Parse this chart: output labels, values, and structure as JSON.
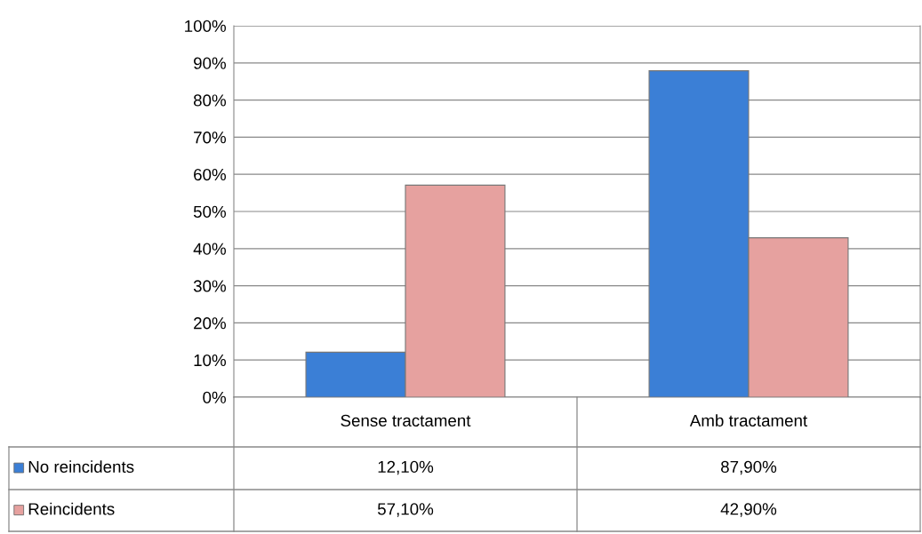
{
  "chart_data": {
    "type": "bar",
    "categories": [
      "Sense tractament",
      "Amb tractament"
    ],
    "series": [
      {
        "name": "No reincidents",
        "color": "#3b7fd6",
        "values": [
          12.1,
          87.9
        ],
        "value_labels": [
          "12,10%",
          "87,90%"
        ]
      },
      {
        "name": "Reincidents",
        "color": "#e6a19f",
        "values": [
          57.1,
          42.9
        ],
        "value_labels": [
          "57,10%",
          "42,90%"
        ]
      }
    ],
    "ylim": [
      0,
      100
    ],
    "yticks": [
      {
        "value": 0,
        "label": "0%"
      },
      {
        "value": 10,
        "label": "10%"
      },
      {
        "value": 20,
        "label": "20%"
      },
      {
        "value": 30,
        "label": "30%"
      },
      {
        "value": 40,
        "label": "40%"
      },
      {
        "value": 50,
        "label": "50%"
      },
      {
        "value": 60,
        "label": "60%"
      },
      {
        "value": 70,
        "label": "70%"
      },
      {
        "value": 80,
        "label": "80%"
      },
      {
        "value": 90,
        "label": "90%"
      },
      {
        "value": 100,
        "label": "100%"
      }
    ],
    "grid": "y",
    "legend": "left"
  }
}
